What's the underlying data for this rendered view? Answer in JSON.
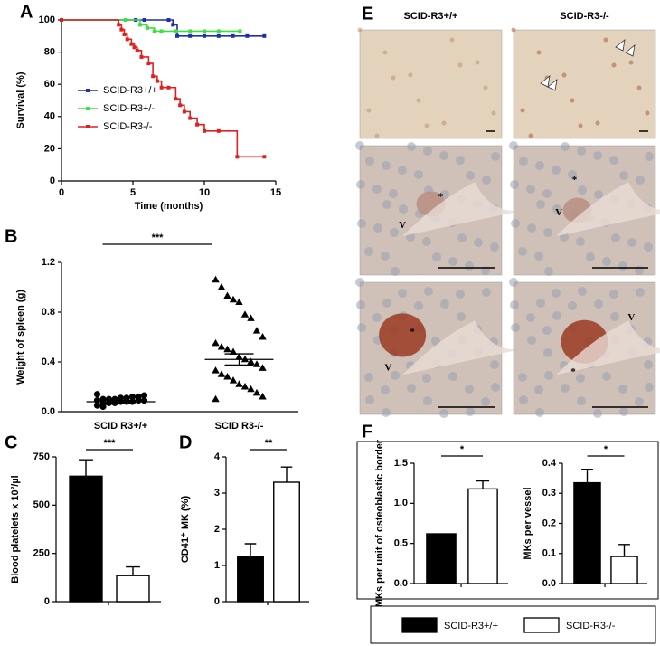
{
  "chart_data": [
    {
      "type": "line",
      "panel": "A",
      "step": true,
      "xlabel": "Time (months)",
      "ylabel": "Survival (%)",
      "xlim": [
        0,
        15
      ],
      "xticks": [
        0,
        5,
        10,
        15
      ],
      "ylim": [
        0,
        100
      ],
      "yticks": [
        0,
        20,
        40,
        60,
        80,
        100
      ],
      "legend": "lower-left",
      "series": [
        {
          "name": "SCID-R3+/+",
          "color": "#1f2fb0",
          "x": [
            0,
            4.5,
            5.2,
            5.8,
            7.5,
            7.8,
            8.1,
            9,
            10,
            11,
            12,
            13,
            14.2
          ],
          "values": [
            100,
            100,
            100,
            100,
            100,
            97,
            90,
            90,
            90,
            90,
            90,
            90,
            90
          ]
        },
        {
          "name": "SCID-R3+/-",
          "color": "#3ee03e",
          "x": [
            0,
            4.5,
            5.5,
            6,
            6.5,
            7,
            8,
            9,
            10,
            11,
            12.5
          ],
          "values": [
            100,
            100,
            97,
            95,
            93,
            93,
            93,
            93,
            93,
            93,
            93
          ]
        },
        {
          "name": "SCID-R3-/-",
          "color": "#e0201e",
          "x": [
            0,
            4,
            4.2,
            4.4,
            4.6,
            4.9,
            5.1,
            5.3,
            5.6,
            6.1,
            6.4,
            6.7,
            7,
            7.5,
            8,
            8.3,
            8.6,
            9,
            9.5,
            10,
            11,
            12.3,
            14.2
          ],
          "values": [
            100,
            97,
            94,
            91,
            88,
            85,
            83,
            81,
            77,
            73,
            65,
            62,
            58,
            58,
            51,
            47,
            43,
            39,
            35,
            31,
            31,
            15,
            15
          ]
        }
      ]
    },
    {
      "type": "dot",
      "panel": "B",
      "ylabel": "Weight of spleen (g)",
      "significance": "***",
      "categories": [
        "SCID R3+/+",
        "SCID R3-/-"
      ],
      "ylim": [
        0,
        1.2
      ],
      "yticks": [
        {
          "value": 0,
          "label": "0.0"
        },
        0.4,
        0.8,
        1.2
      ],
      "points": [
        [
          0.05,
          0.06,
          0.07,
          0.07,
          0.08,
          0.08,
          0.08,
          0.09,
          0.09,
          0.09,
          0.1,
          0.1,
          0.1,
          0.11,
          0.11,
          0.12,
          0.12,
          0.13,
          0.14,
          0.04
        ],
        [
          1.06,
          1.0,
          0.93,
          0.9,
          0.88,
          0.78,
          0.75,
          0.65,
          0.6,
          0.55,
          0.52,
          0.5,
          0.48,
          0.44,
          0.42,
          0.4,
          0.38,
          0.35,
          0.33,
          0.3,
          0.28,
          0.25,
          0.22,
          0.2,
          0.18,
          0.15,
          0.12,
          0.1
        ]
      ],
      "means": [
        0.08,
        0.42
      ],
      "sem": [
        0.01,
        0.045
      ]
    },
    {
      "type": "bar",
      "panel": "C",
      "ylabel": "Blood platelets x 10³/µl",
      "significance": "***",
      "categories": [
        null,
        null
      ],
      "colors": [
        "#000000",
        "#ffffff"
      ],
      "values": [
        650,
        135
      ],
      "errors": [
        85,
        45
      ],
      "ylim": [
        0,
        750
      ],
      "yticks": [
        0,
        250,
        500,
        750
      ]
    },
    {
      "type": "bar",
      "panel": "D",
      "ylabel": "CD41⁺ MK (%)",
      "significance": "**",
      "categories": [
        null,
        null
      ],
      "colors": [
        "#000000",
        "#ffffff"
      ],
      "values": [
        1.25,
        3.3
      ],
      "errors": [
        0.35,
        0.42
      ],
      "ylim": [
        0,
        4
      ],
      "yticks": [
        0,
        1,
        2,
        3,
        4
      ]
    },
    {
      "type": "bar",
      "panel": "F",
      "ylabel": "MKs per unit of osteoblastic border",
      "significance": "*",
      "categories": [
        null,
        null
      ],
      "colors": [
        "#000000",
        "#ffffff"
      ],
      "values": [
        0.62,
        1.18
      ],
      "errors": [
        0,
        0.1
      ],
      "ylim": [
        0,
        1.5
      ],
      "yticks": [
        {
          "value": 0,
          "label": "0.0"
        },
        0.5,
        {
          "value": 1,
          "label": "1.0"
        },
        1.5
      ]
    },
    {
      "type": "bar",
      "ylabel": "MKs per vessel",
      "significance": "*",
      "categories": [
        null,
        null
      ],
      "colors": [
        "#000000",
        "#ffffff"
      ],
      "values": [
        0.335,
        0.09
      ],
      "errors": [
        0.045,
        0.04
      ],
      "ylim": [
        0,
        0.4
      ],
      "yticks": [
        {
          "value": 0,
          "label": "0.0"
        },
        0.1,
        0.2,
        0.3,
        0.4
      ]
    }
  ],
  "micrograph": {
    "panel": "E",
    "columns": [
      "SCID-R3+/+",
      "SCID-R3-/-"
    ],
    "cells": [
      [
        [],
        []
      ],
      [
        [
          "*",
          "V"
        ],
        [
          "*",
          "V"
        ]
      ],
      [
        [
          "*",
          "V"
        ],
        [
          "V",
          "*"
        ]
      ]
    ]
  },
  "legend": {
    "entries": [
      {
        "name": "SCID-R3+/+",
        "color": "#000000"
      },
      {
        "name": "SCID-R3-/-",
        "color": "#ffffff"
      }
    ]
  }
}
